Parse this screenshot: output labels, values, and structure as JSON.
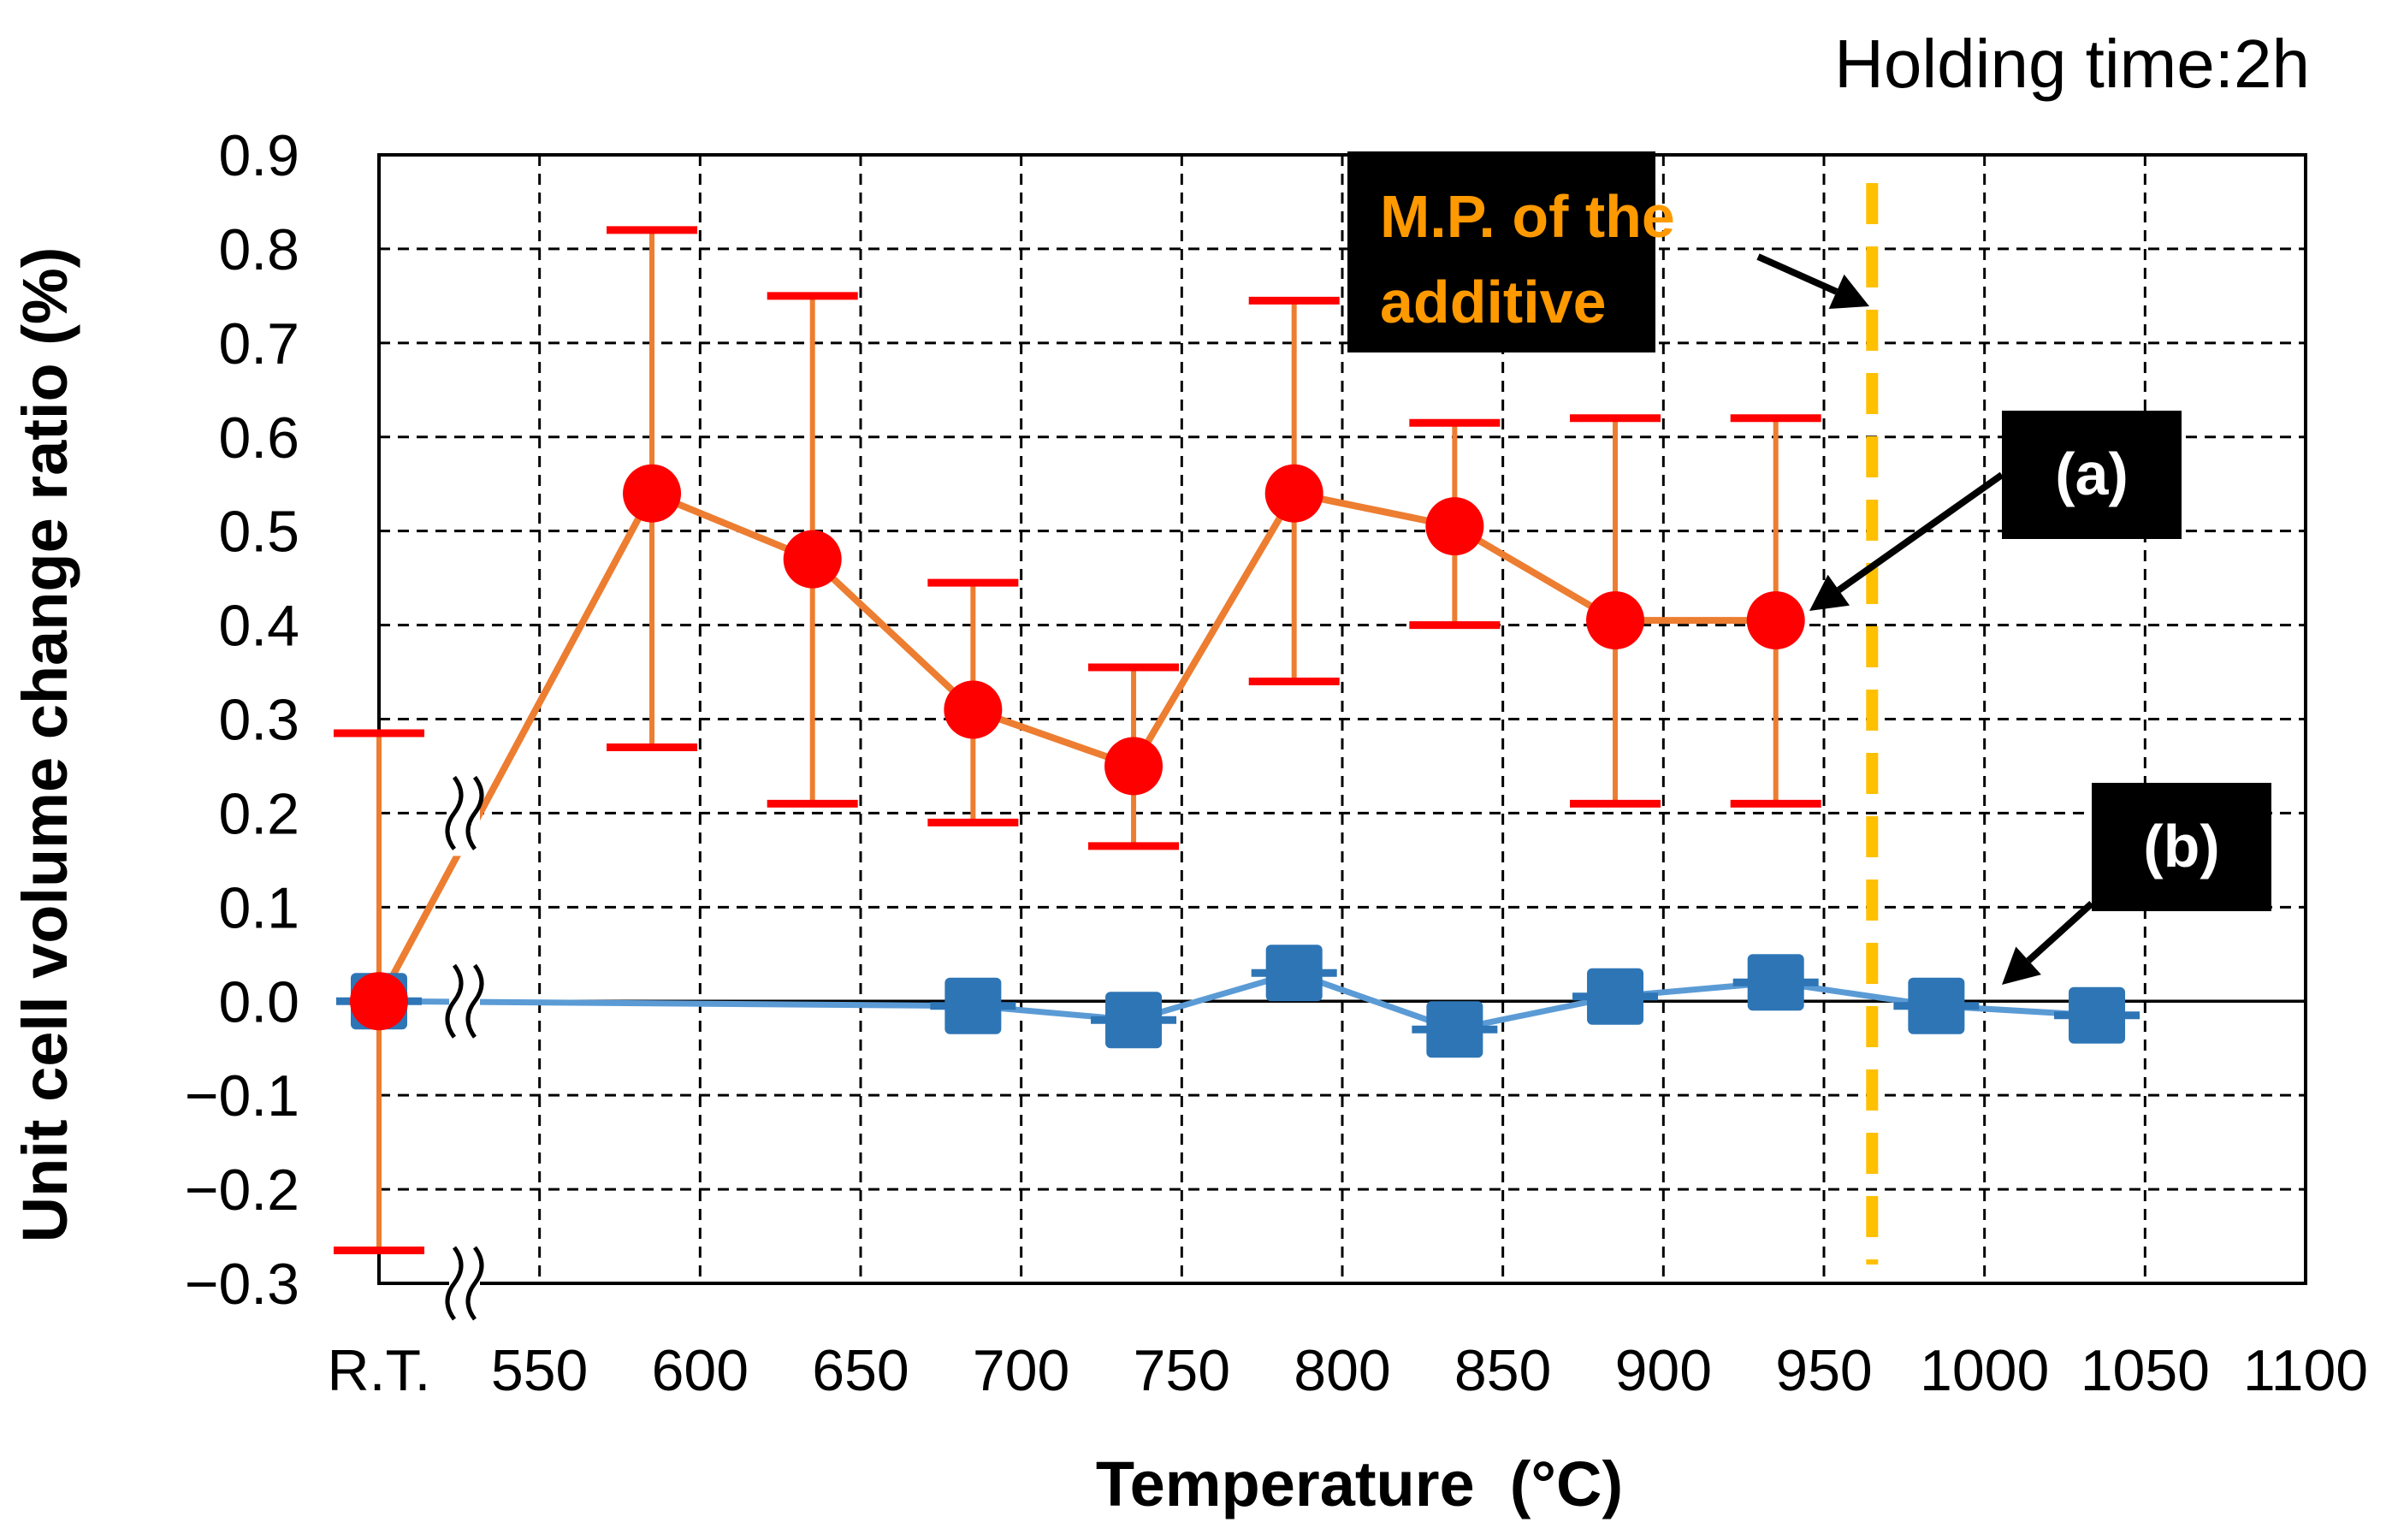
{
  "chart_data": {
    "type": "line",
    "xlabel": "Temperature  (°C)",
    "ylabel": "Unit cell volume change ratio (%)",
    "note": "Holding time:2h",
    "ylim": [
      -0.3,
      0.9
    ],
    "xlim": [
      500,
      1100
    ],
    "x_tick_values": [
      500,
      550,
      600,
      650,
      700,
      750,
      800,
      850,
      900,
      950,
      1000,
      1050,
      1100
    ],
    "x_tick_labels": [
      "R.T.",
      "550",
      "600",
      "650",
      "700",
      "750",
      "800",
      "850",
      "900",
      "950",
      "1000",
      "1050",
      "1100"
    ],
    "y_tick_values": [
      0.9,
      0.8,
      0.7,
      0.6,
      0.5,
      0.4,
      0.3,
      0.2,
      0.1,
      0.0,
      -0.1,
      -0.2,
      -0.3
    ],
    "y_tick_labels": [
      "0.9",
      "0.8",
      "0.7",
      "0.6",
      "0.5",
      "0.4",
      "0.3",
      "0.2",
      "0.1",
      "0.0",
      "−0.1",
      "−0.2",
      "−0.3"
    ],
    "grid": true,
    "axis_break": true,
    "series": [
      {
        "name": "(a)",
        "color": "#ED7D31",
        "marker_color": "#FF0000",
        "error_color": "#FF0000",
        "marker": "circle",
        "x": [
          500,
          585,
          635,
          685,
          735,
          785,
          835,
          885,
          935
        ],
        "y": [
          0.0,
          0.54,
          0.47,
          0.31,
          0.25,
          0.54,
          0.505,
          0.405,
          0.405
        ],
        "err_low": [
          -0.265,
          0.27,
          0.21,
          0.19,
          0.165,
          0.34,
          0.4,
          0.21,
          0.21
        ],
        "err_high": [
          0.285,
          0.82,
          0.75,
          0.445,
          0.355,
          0.745,
          0.615,
          0.62,
          0.62
        ]
      },
      {
        "name": "(b)",
        "color": "#5B9BD5",
        "marker_color": "#2E75B6",
        "marker": "square",
        "x": [
          500,
          685,
          735,
          785,
          835,
          885,
          935,
          985,
          1035
        ],
        "y": [
          0.0,
          -0.005,
          -0.02,
          0.03,
          -0.03,
          0.005,
          0.02,
          -0.005,
          -0.015
        ]
      }
    ],
    "vline": {
      "x": 965,
      "y0": -0.28,
      "y1": 0.87,
      "color": "#FFC000",
      "label": "M.P. of the additive"
    },
    "annotations": [
      {
        "label": "M.P. of the additive",
        "lines": [
          "M.P. of the",
          "additive"
        ],
        "text_color": "#FF9900",
        "bg": "#000000"
      },
      {
        "label": "(a)",
        "lines": [
          "(a)"
        ],
        "text_color": "#ffffff",
        "bg": "#000000"
      },
      {
        "label": "(b)",
        "lines": [
          "(b)"
        ],
        "text_color": "#ffffff",
        "bg": "#000000"
      }
    ]
  }
}
